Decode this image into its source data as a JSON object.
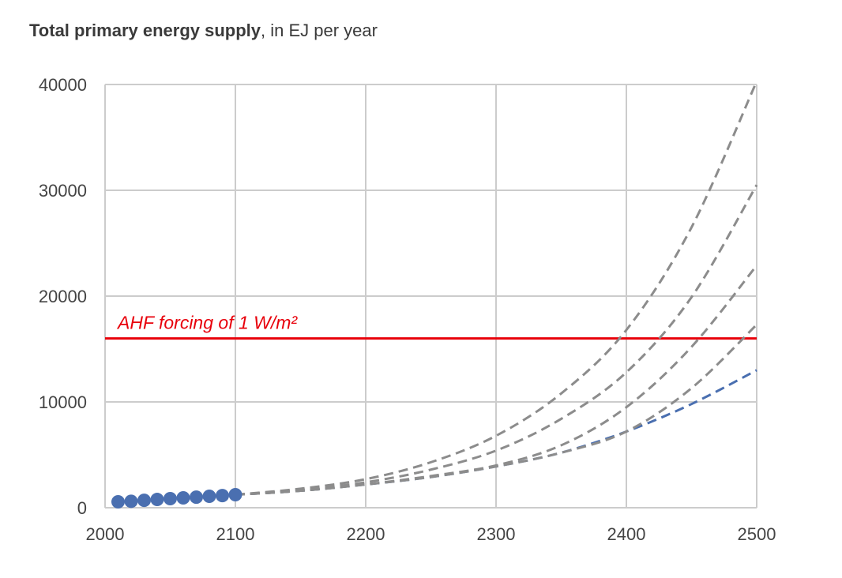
{
  "title_main": "Total primary energy supply",
  "title_rest": ", in EJ per year",
  "colors": {
    "grid": "#cccccc",
    "dashed_scenarios": "#8c8c8c",
    "baseline": "#4a6fb0",
    "reference": "#e8000b"
  },
  "chart_data": {
    "type": "line",
    "title": "Total primary energy supply, in EJ per year",
    "xlabel": "",
    "ylabel": "",
    "xlim": [
      2000,
      2500
    ],
    "ylim": [
      0,
      40000
    ],
    "x_ticks": [
      "2000",
      "2100",
      "2200",
      "2300",
      "2400",
      "2500"
    ],
    "y_ticks": [
      "0",
      "10000",
      "20000",
      "30000",
      "40000"
    ],
    "grid": true,
    "reference_line": {
      "y": 16000,
      "label": "AHF forcing of 1 W/m²"
    },
    "observed_points": {
      "x": [
        2010,
        2020,
        2030,
        2040,
        2050,
        2060,
        2070,
        2080,
        2090,
        2100
      ],
      "y": [
        560,
        610,
        700,
        780,
        860,
        930,
        1000,
        1080,
        1150,
        1230
      ]
    },
    "series": [
      {
        "style": "dashed-gray",
        "x": [
          2100,
          2150,
          2200,
          2250,
          2300,
          2350,
          2400,
          2450,
          2500
        ],
        "y": [
          1230,
          1800,
          2700,
          4300,
          6800,
          10800,
          16800,
          26500,
          40300
        ]
      },
      {
        "style": "dashed-gray",
        "x": [
          2100,
          2150,
          2200,
          2250,
          2300,
          2350,
          2400,
          2450,
          2500
        ],
        "y": [
          1230,
          1700,
          2400,
          3600,
          5400,
          8400,
          12800,
          19900,
          30500
        ]
      },
      {
        "style": "dashed-gray",
        "x": [
          2100,
          2150,
          2200,
          2250,
          2300,
          2350,
          2400,
          2450,
          2500
        ],
        "y": [
          1230,
          1600,
          2200,
          3000,
          4000,
          5900,
          9500,
          15200,
          22900
        ]
      },
      {
        "style": "dashed-gray",
        "x": [
          2100,
          2150,
          2200,
          2250,
          2300,
          2350,
          2400,
          2450,
          2500
        ],
        "y": [
          1230,
          1600,
          2200,
          2900,
          3900,
          5200,
          7200,
          11300,
          17300
        ]
      },
      {
        "style": "dashed-blue",
        "x": [
          2100,
          2150,
          2200,
          2250,
          2300,
          2350,
          2400,
          2450,
          2500
        ],
        "y": [
          1230,
          1600,
          2200,
          2900,
          3900,
          5200,
          7200,
          9800,
          13000
        ]
      }
    ]
  }
}
